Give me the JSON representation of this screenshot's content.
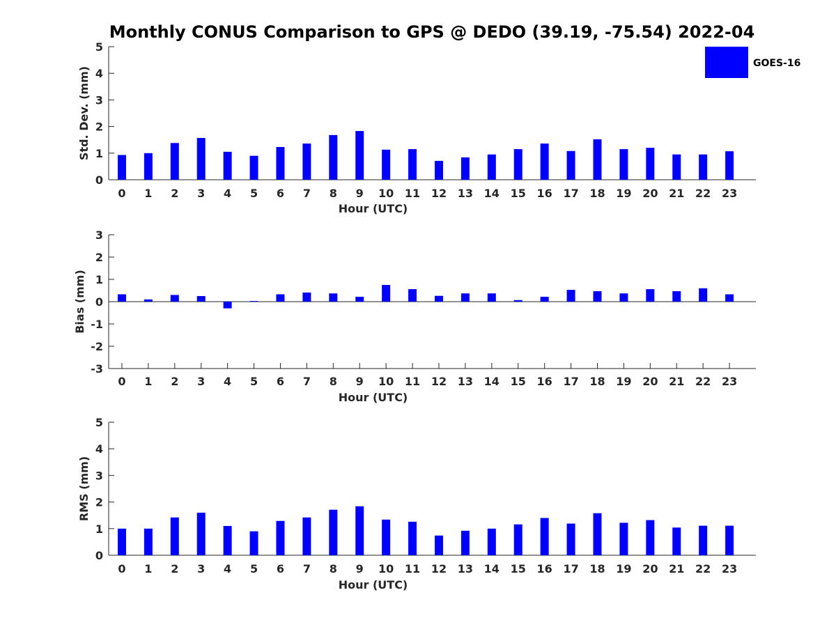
{
  "title": "Monthly CONUS Comparison to GPS @ DEDO (39.19, -75.54) 2022-04",
  "legend": {
    "label": "GOES-16",
    "color": "#0000ff",
    "placement": "top-right"
  },
  "chart_data": [
    {
      "type": "bar",
      "name": "std-dev",
      "xlabel": "Hour (UTC)",
      "ylabel": "Std. Dev. (mm)",
      "ylim": [
        0,
        5
      ],
      "yticks": [
        0,
        1,
        2,
        3,
        4,
        5
      ],
      "categories": [
        "0",
        "1",
        "2",
        "3",
        "4",
        "5",
        "6",
        "7",
        "8",
        "9",
        "10",
        "11",
        "12",
        "13",
        "14",
        "15",
        "16",
        "17",
        "18",
        "19",
        "20",
        "21",
        "22",
        "23"
      ],
      "series": [
        {
          "name": "GOES-16",
          "color": "#0000ff",
          "values": [
            0.93,
            1.0,
            1.38,
            1.57,
            1.05,
            0.9,
            1.23,
            1.36,
            1.68,
            1.83,
            1.13,
            1.15,
            0.71,
            0.84,
            0.95,
            1.15,
            1.36,
            1.08,
            1.52,
            1.15,
            1.2,
            0.95,
            0.95,
            1.07
          ]
        }
      ]
    },
    {
      "type": "bar",
      "name": "bias",
      "xlabel": "Hour (UTC)",
      "ylabel": "Bias (mm)",
      "ylim": [
        -3,
        3
      ],
      "yticks": [
        -3,
        -2,
        -1,
        0,
        1,
        2,
        3
      ],
      "categories": [
        "0",
        "1",
        "2",
        "3",
        "4",
        "5",
        "6",
        "7",
        "8",
        "9",
        "10",
        "11",
        "12",
        "13",
        "14",
        "15",
        "16",
        "17",
        "18",
        "19",
        "20",
        "21",
        "22",
        "23"
      ],
      "series": [
        {
          "name": "GOES-16",
          "color": "#0000ff",
          "values": [
            0.33,
            0.1,
            0.3,
            0.25,
            -0.3,
            0.03,
            0.33,
            0.41,
            0.37,
            0.22,
            0.75,
            0.56,
            0.26,
            0.37,
            0.37,
            0.07,
            0.22,
            0.53,
            0.47,
            0.37,
            0.56,
            0.47,
            0.6,
            0.33
          ]
        }
      ]
    },
    {
      "type": "bar",
      "name": "rms",
      "xlabel": "Hour (UTC)",
      "ylabel": "RMS (mm)",
      "ylim": [
        0,
        5
      ],
      "yticks": [
        0,
        1,
        2,
        3,
        4,
        5
      ],
      "categories": [
        "0",
        "1",
        "2",
        "3",
        "4",
        "5",
        "6",
        "7",
        "8",
        "9",
        "10",
        "11",
        "12",
        "13",
        "14",
        "15",
        "16",
        "17",
        "18",
        "19",
        "20",
        "21",
        "22",
        "23"
      ],
      "series": [
        {
          "name": "GOES-16",
          "color": "#0000ff",
          "values": [
            1.0,
            1.0,
            1.42,
            1.6,
            1.1,
            0.9,
            1.29,
            1.42,
            1.71,
            1.84,
            1.34,
            1.26,
            0.74,
            0.92,
            1.0,
            1.16,
            1.4,
            1.19,
            1.58,
            1.22,
            1.32,
            1.04,
            1.11,
            1.11
          ]
        }
      ]
    }
  ]
}
